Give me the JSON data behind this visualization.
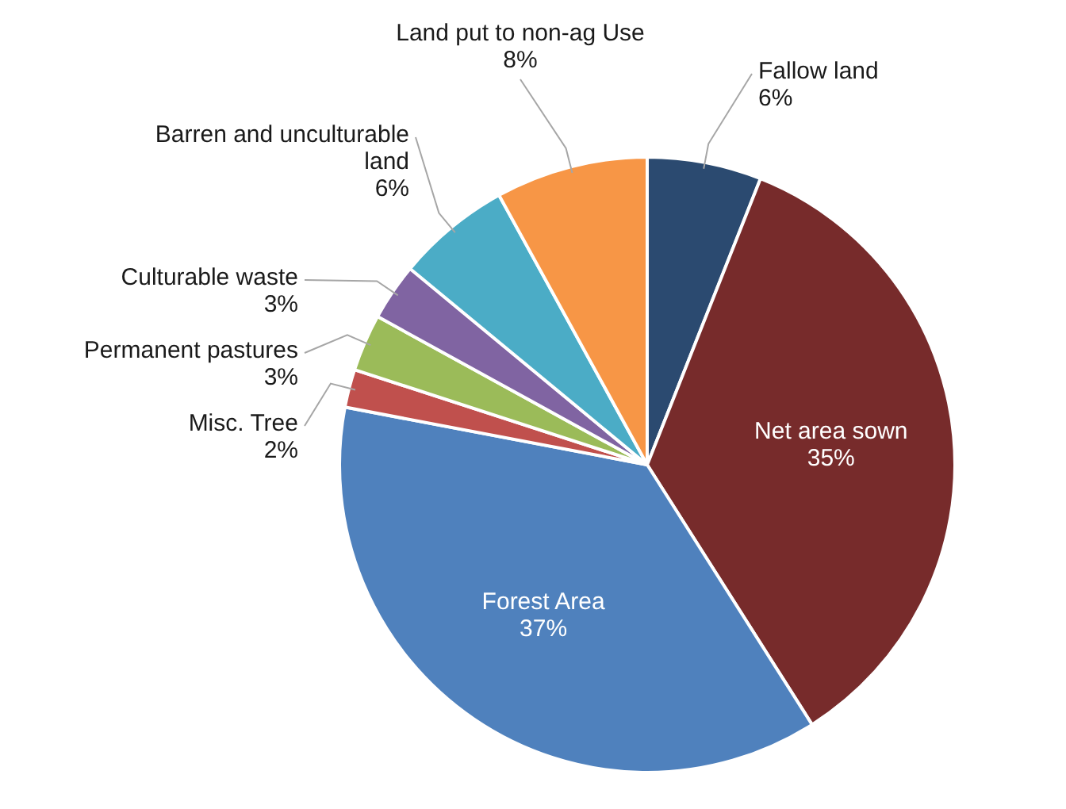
{
  "chart_data": {
    "type": "pie",
    "categories": [
      "Fallow land",
      "Net area sown",
      "Forest Area",
      "Misc. Tree",
      "Permanent pastures",
      "Culturable waste",
      "Barren and unculturable land",
      "Land put to non-ag Use"
    ],
    "values": [
      6,
      35,
      37,
      2,
      3,
      3,
      6,
      8
    ],
    "value_labels": [
      "6%",
      "35%",
      "37%",
      "2%",
      "3%",
      "3%",
      "6%",
      "8%"
    ],
    "colors": [
      "#2b4a70",
      "#772b2b",
      "#4f81bd",
      "#c0504d",
      "#9bbb59",
      "#8064a2",
      "#4bacc6",
      "#f79646"
    ],
    "legend": false
  }
}
